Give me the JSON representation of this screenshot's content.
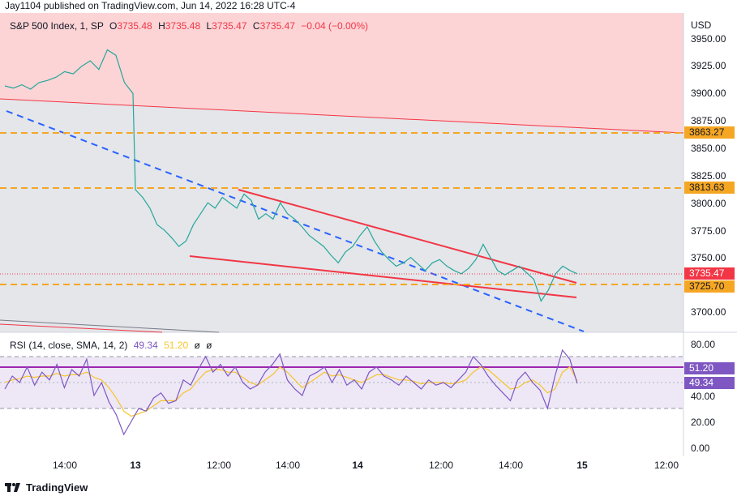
{
  "header": {
    "published_text": "Jay1104 published on TradingView.com, Jun 14, 2022 16:28 UTC-4"
  },
  "legend": {
    "symbol": "S&P 500 Index, 1, SP",
    "open_label": "O",
    "open": "3735.48",
    "high_label": "H",
    "high": "3735.48",
    "low_label": "L",
    "low": "3735.47",
    "close_label": "C",
    "close": "3735.47",
    "change": "−0.04 (−0.00%)"
  },
  "rsi_legend": {
    "title": "RSI (14, close, SMA, 14, 2)",
    "rsi": "49.34",
    "sma": "51.20",
    "extra1": "ø",
    "extra2": "ø"
  },
  "price_axis": {
    "currency": "USD",
    "ticks": [
      "3950.00",
      "3925.00",
      "3900.00",
      "3875.00",
      "3850.00",
      "3825.00",
      "3800.00",
      "3775.00",
      "3750.00",
      "3700.00"
    ],
    "tags": [
      {
        "label": "3863.27",
        "bg": "#f5a623",
        "fg": "#131722"
      },
      {
        "label": "3813.63",
        "bg": "#f5a623",
        "fg": "#131722"
      },
      {
        "label": "3735.47",
        "bg": "#f23645",
        "fg": "#ffffff"
      },
      {
        "label": "3725.70",
        "bg": "#f5a623",
        "fg": "#131722"
      }
    ]
  },
  "rsi_axis": {
    "ticks": [
      "80.00",
      "40.00",
      "20.00",
      "0.00"
    ],
    "tags": [
      {
        "label": "51.20",
        "bg": "#7e57c2",
        "fg": "#ffffff"
      },
      {
        "label": "49.34",
        "bg": "#7e57c2",
        "fg": "#ffffff"
      }
    ]
  },
  "time_axis": {
    "ticks": [
      {
        "label": "14:00",
        "bold": false
      },
      {
        "label": "13",
        "bold": true
      },
      {
        "label": "12:00",
        "bold": false
      },
      {
        "label": "14:00",
        "bold": false
      },
      {
        "label": "14",
        "bold": true
      },
      {
        "label": "12:00",
        "bold": false
      },
      {
        "label": "14:00",
        "bold": false
      },
      {
        "label": "15",
        "bold": true
      },
      {
        "label": "12:00",
        "bold": false
      }
    ]
  },
  "footer": {
    "brand": "TradingView"
  },
  "colors": {
    "price_line": "#26a69a",
    "rsi_line": "#7e57c2",
    "rsi_sma": "#f7c52a",
    "support": "#f5a623",
    "trend": "#f23645",
    "dashed_trend": "#2962ff"
  },
  "chart_data": {
    "type": "line",
    "title": "S&P 500 Index, 1, SP",
    "ylim": [
      3690,
      3960
    ],
    "grid": false,
    "horizontal_levels": [
      3863.27,
      3813.63,
      3725.7
    ],
    "last_price": 3735.47,
    "series": [
      {
        "values": [
          3907,
          3905,
          3908,
          3904,
          3910,
          3912,
          3915,
          3920,
          3918,
          3925,
          3930,
          3922,
          3940,
          3935,
          3910,
          3900,
          3812,
          3805,
          3795,
          3780,
          3775,
          3768,
          3760,
          3765,
          3780,
          3790,
          3800,
          3795,
          3805,
          3800,
          3795,
          3808,
          3802,
          3785,
          3790,
          3785,
          3800,
          3790,
          3785,
          3778,
          3770,
          3765,
          3760,
          3752,
          3745,
          3755,
          3760,
          3770,
          3778,
          3765,
          3755,
          3748,
          3742,
          3745,
          3750,
          3744,
          3738,
          3745,
          3748,
          3742,
          3738,
          3735,
          3740,
          3748,
          3762,
          3750,
          3738,
          3734,
          3738,
          3742,
          3736,
          3730,
          3710,
          3720,
          3735,
          3742,
          3738,
          3735
        ]
      }
    ],
    "rsi": {
      "rsi_values": [
        45,
        55,
        50,
        62,
        48,
        58,
        52,
        64,
        46,
        60,
        55,
        68,
        40,
        50,
        35,
        25,
        10,
        20,
        30,
        28,
        38,
        42,
        34,
        36,
        52,
        48,
        60,
        70,
        58,
        64,
        55,
        62,
        50,
        45,
        48,
        58,
        64,
        72,
        52,
        45,
        40,
        55,
        58,
        62,
        50,
        60,
        48,
        52,
        45,
        58,
        62,
        55,
        52,
        48,
        55,
        50,
        45,
        52,
        48,
        50,
        46,
        52,
        58,
        70,
        64,
        55,
        48,
        42,
        36,
        52,
        58,
        50,
        44,
        30,
        55,
        75,
        68,
        49.34
      ],
      "sma_values": [
        50,
        52,
        53,
        55,
        54,
        55,
        55,
        57,
        55,
        56,
        56,
        58,
        54,
        52,
        46,
        38,
        28,
        24,
        26,
        28,
        32,
        36,
        36,
        36,
        42,
        45,
        52,
        58,
        60,
        60,
        58,
        58,
        54,
        50,
        48,
        52,
        56,
        62,
        58,
        52,
        46,
        50,
        54,
        58,
        55,
        56,
        54,
        52,
        50,
        53,
        56,
        56,
        54,
        52,
        52,
        51,
        49,
        50,
        50,
        50,
        49,
        50,
        52,
        58,
        62,
        60,
        55,
        50,
        45,
        46,
        50,
        52,
        48,
        42,
        45,
        58,
        62,
        51.2
      ],
      "overbought": 70,
      "oversold": 30,
      "ylim": [
        0,
        85
      ]
    }
  }
}
